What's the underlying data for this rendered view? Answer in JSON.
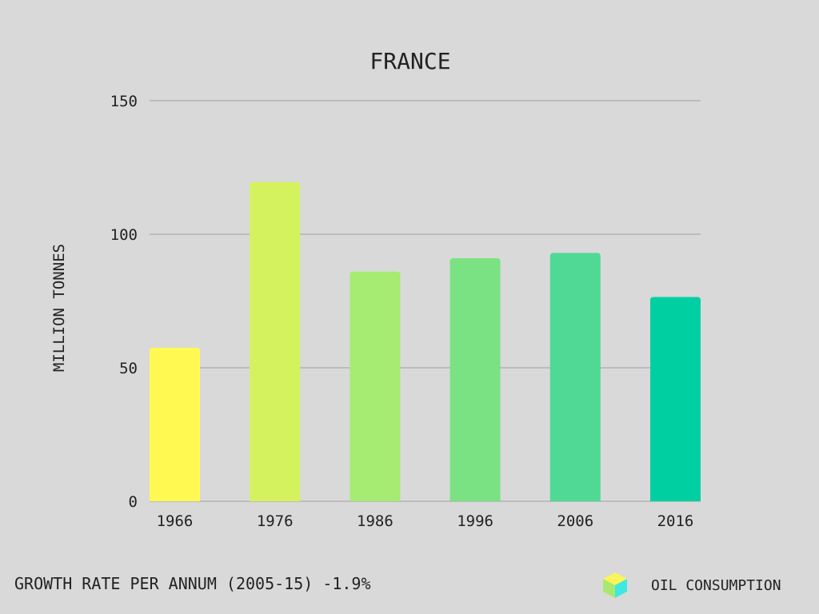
{
  "chart_data": {
    "type": "bar",
    "title": "FRANCE",
    "xlabel": "",
    "ylabel": "MILLION TONNES",
    "categories": [
      "1966",
      "1976",
      "1986",
      "1996",
      "2006",
      "2016"
    ],
    "series": [
      {
        "name": "OIL CONSUMPTION",
        "values": [
          57.5,
          119.5,
          86,
          91,
          93,
          76.5
        ]
      }
    ],
    "bar_colors": [
      "#fff952",
      "#d4f25e",
      "#a6eb72",
      "#7ae282",
      "#4fd994",
      "#00cfa1"
    ],
    "ylim": [
      0,
      150
    ],
    "yticks": [
      0,
      50,
      100,
      150
    ],
    "grid": true,
    "legend_position": "bottom-right"
  },
  "footer": {
    "note": "GROWTH RATE PER ANNUM (2005-15) -1.9%"
  },
  "legend": {
    "label": "OIL CONSUMPTION",
    "icon": "cube-icon",
    "colors": {
      "top": "#fbf45a",
      "left": "#a8e86e",
      "right": "#3fe8e0"
    }
  }
}
